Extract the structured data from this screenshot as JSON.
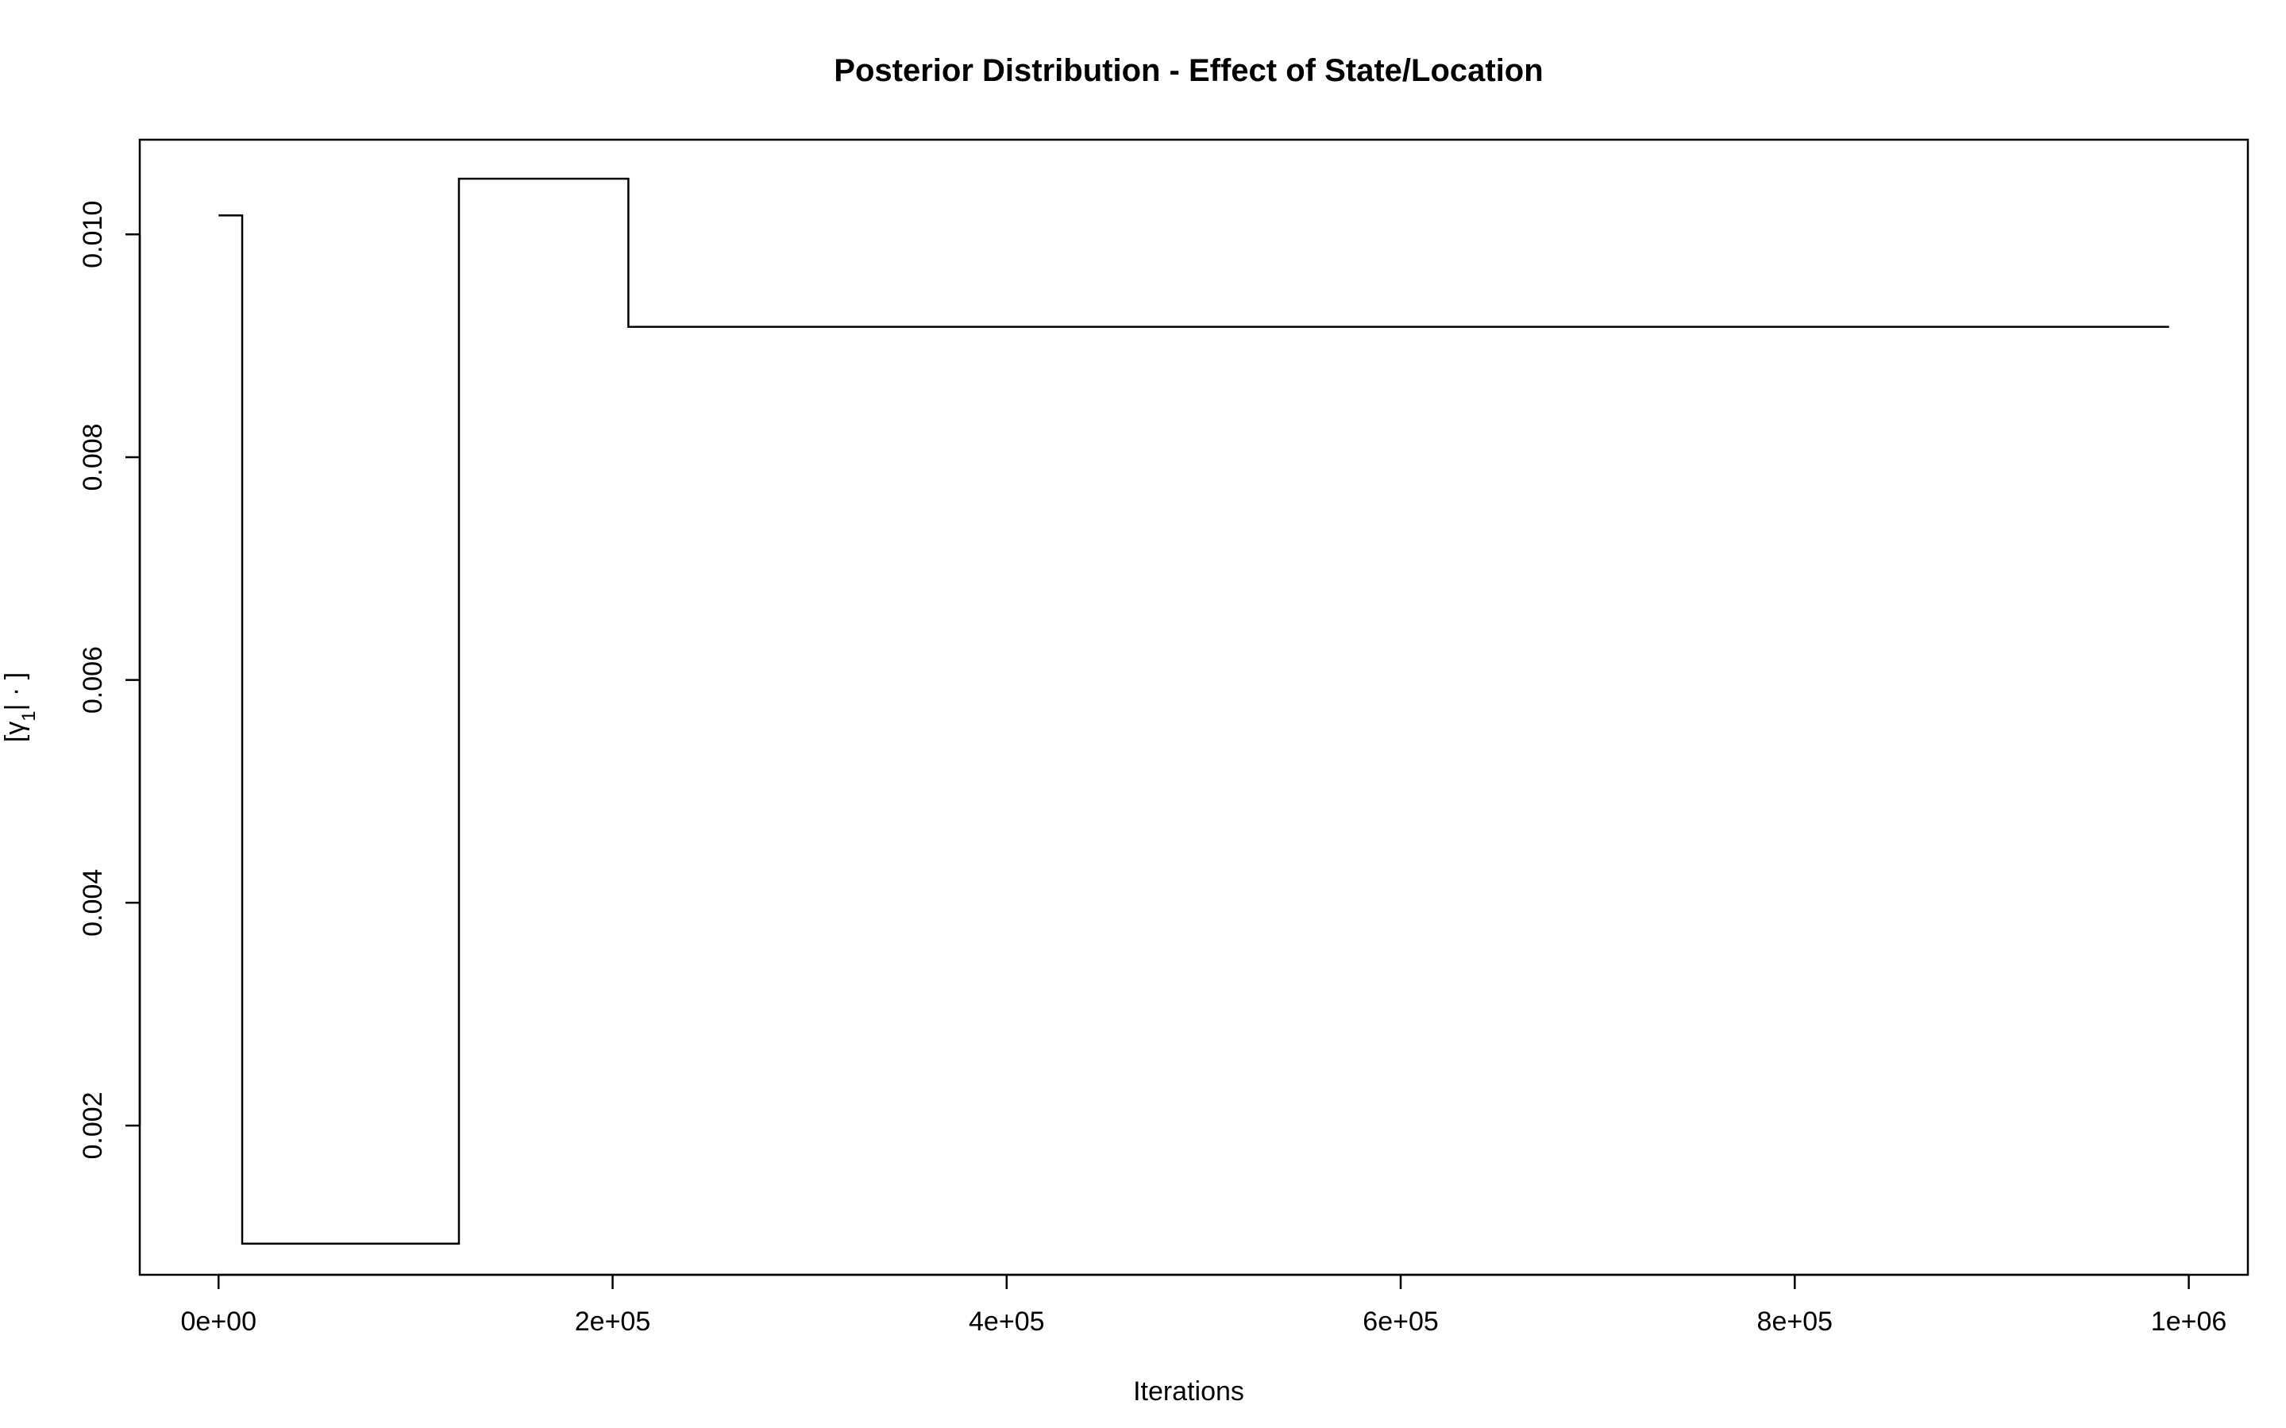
{
  "chart_data": {
    "type": "line",
    "title": "Posterior Distribution - Effect of State/Location",
    "xlabel": "Iterations",
    "ylabel": "[γ1| · ]",
    "ylabel_parts": {
      "open": "[",
      "symbol": "γ",
      "subscript": "1",
      "rest": "| · ]"
    },
    "xlim": [
      -40000,
      1030000
    ],
    "ylim": [
      0.00066,
      0.01085
    ],
    "x_ticks": [
      {
        "value": 0,
        "label": "0e+00"
      },
      {
        "value": 200000,
        "label": "2e+05"
      },
      {
        "value": 400000,
        "label": "4e+05"
      },
      {
        "value": 600000,
        "label": "6e+05"
      },
      {
        "value": 800000,
        "label": "8e+05"
      },
      {
        "value": 1000000,
        "label": "1e+06"
      }
    ],
    "y_ticks": [
      {
        "value": 0.002,
        "label": "0.002"
      },
      {
        "value": 0.004,
        "label": "0.004"
      },
      {
        "value": 0.006,
        "label": "0.006"
      },
      {
        "value": 0.008,
        "label": "0.008"
      },
      {
        "value": 0.01,
        "label": "0.010"
      }
    ],
    "step": "post",
    "series": [
      {
        "color": "#000000",
        "points": [
          {
            "x": 0,
            "y": 0.01017
          },
          {
            "x": 12000,
            "y": 0.00094
          },
          {
            "x": 122000,
            "y": 0.0105
          },
          {
            "x": 208000,
            "y": 0.00917
          },
          {
            "x": 990000,
            "y": 0.00917
          }
        ]
      }
    ],
    "grid": false,
    "box": true
  }
}
